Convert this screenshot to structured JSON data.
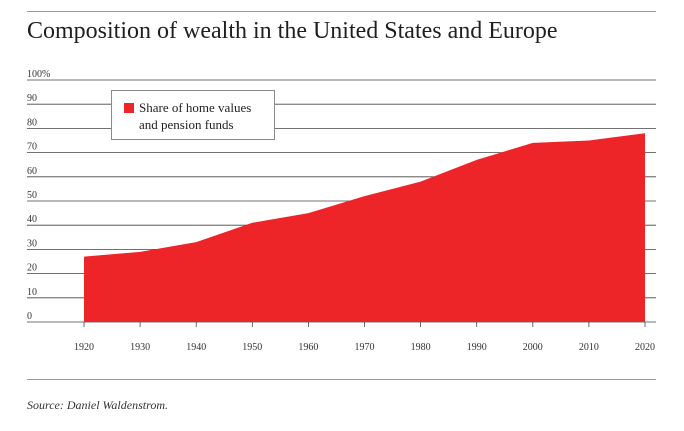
{
  "title": "Composition of wealth in the United States and Europe",
  "source": "Source: Daniel Waldenstrom.",
  "colors": {
    "area": "#ee2528",
    "grid": "#444444",
    "rule": "#9a9a9a"
  },
  "chart_data": {
    "type": "area",
    "title": "Composition of wealth in the United States and Europe",
    "xlabel": "",
    "ylabel": "",
    "x": [
      1920,
      1930,
      1940,
      1950,
      1960,
      1970,
      1980,
      1990,
      2000,
      2010,
      2020
    ],
    "series": [
      {
        "name": "Share of home values and pension funds",
        "values": [
          27,
          29,
          33,
          41,
          45,
          52,
          58,
          67,
          74,
          75,
          78
        ]
      }
    ],
    "ylim": [
      0,
      100
    ],
    "y_ticks": [
      "0",
      "10",
      "20",
      "30",
      "40",
      "50",
      "60",
      "70",
      "80",
      "90",
      "100%"
    ],
    "x_ticks": [
      "1920",
      "1930",
      "1940",
      "1950",
      "1960",
      "1970",
      "1980",
      "1990",
      "2000",
      "2010",
      "2020"
    ],
    "grid": true,
    "legend_position": "top-left",
    "legend_lines": [
      "Share of home values",
      "and pension funds"
    ]
  }
}
